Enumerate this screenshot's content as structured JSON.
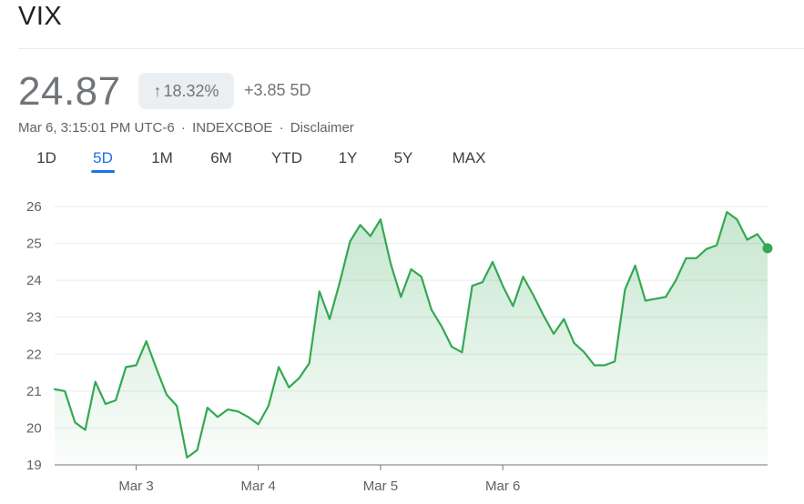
{
  "header": {
    "title": "VIX",
    "price": "24.87",
    "change_pct": "18.32%",
    "change_abs": "+3.85 5D",
    "timestamp": "Mar 6, 3:15:01 PM UTC-6",
    "exchange": "INDEXCBOE",
    "disclaimer": "Disclaimer",
    "separator": "·",
    "up_arrow": "↑"
  },
  "tabs": [
    "1D",
    "5D",
    "1M",
    "6M",
    "YTD",
    "1Y",
    "5Y",
    "MAX"
  ],
  "active_tab": "5D",
  "colors": {
    "line": "#34a853",
    "accent": "#1a73e8",
    "grid": "#e8eaed"
  },
  "chart_data": {
    "type": "area",
    "title": "",
    "xlabel": "",
    "ylabel": "",
    "ylim": [
      19,
      26
    ],
    "yticks": [
      19,
      20,
      21,
      22,
      23,
      24,
      25,
      26
    ],
    "xtick_labels": [
      "Mar 3",
      "Mar 4",
      "Mar 5",
      "Mar 6"
    ],
    "xtick_positions": [
      8,
      20,
      32,
      44
    ],
    "grid": true,
    "series": [
      {
        "values": [
          21.05,
          21.0,
          20.15,
          19.95,
          21.25,
          20.65,
          20.75,
          21.65,
          21.7,
          22.35,
          21.6,
          20.9,
          20.6,
          19.2,
          19.4,
          20.55,
          20.3,
          20.5,
          20.45,
          20.3,
          20.1,
          20.6,
          21.65,
          21.1,
          21.35,
          21.75,
          23.7,
          22.95,
          23.95,
          25.05,
          25.5,
          25.2,
          25.65,
          24.45,
          23.55,
          24.3,
          24.1,
          23.2,
          22.75,
          22.2,
          22.05,
          23.85,
          23.95,
          24.5,
          23.85,
          23.3,
          24.1,
          23.6,
          23.05,
          22.55,
          22.95,
          22.3,
          22.05,
          21.7,
          21.7,
          21.8,
          23.75,
          24.4,
          23.45,
          23.5,
          23.55,
          24.0,
          24.6,
          24.6,
          24.85,
          24.95,
          25.85,
          25.65,
          25.1,
          25.25,
          24.87
        ]
      }
    ]
  }
}
